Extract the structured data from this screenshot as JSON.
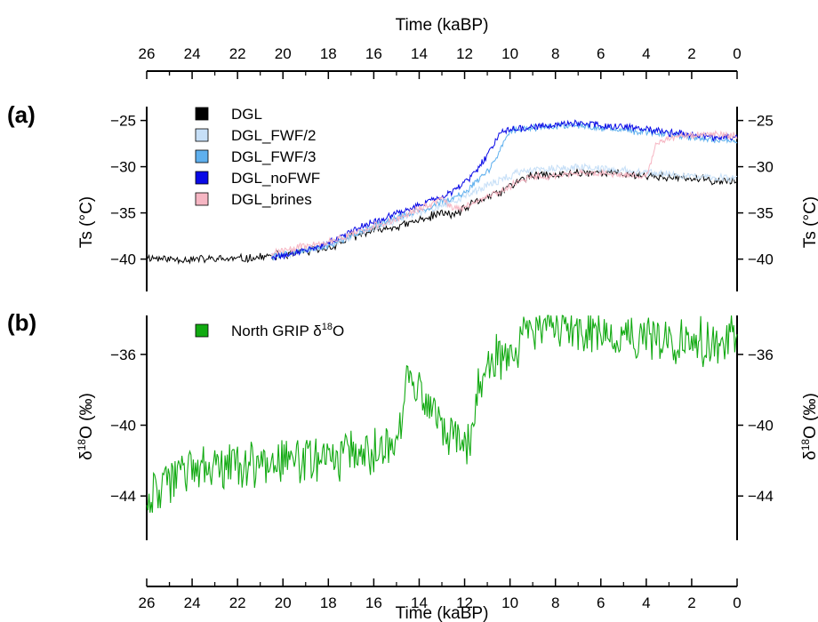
{
  "figure": {
    "top_axis_title": "Time (kaBP)",
    "bottom_axis_title": "Time (kaBP)",
    "x_ticks": [
      "26",
      "24",
      "22",
      "20",
      "18",
      "16",
      "14",
      "12",
      "10",
      "8",
      "6",
      "4",
      "2",
      "0"
    ]
  },
  "chart_data": [
    {
      "panel": "(a)",
      "type": "line",
      "xlabel": "Time (kaBP)",
      "ylabel": "Ts (°C)",
      "ylabel_right": "Ts (°C)",
      "xlim": [
        26,
        0
      ],
      "ylim": [
        -43.5,
        -23.5
      ],
      "y_ticks": [
        -25,
        -30,
        -35,
        -40
      ],
      "y_tick_labels": [
        "−25",
        "−30",
        "−35",
        "−40"
      ],
      "legend_position": "top-left",
      "x": [
        26,
        25,
        24,
        23,
        22,
        21,
        20,
        19,
        18,
        17,
        16,
        15,
        14.5,
        14,
        13.5,
        13,
        12.5,
        12,
        11.5,
        11,
        10.8,
        10.5,
        10.2,
        10,
        9.5,
        9,
        8.5,
        8,
        7,
        6,
        5,
        4,
        3.8,
        3.6,
        3,
        2,
        1,
        0
      ],
      "series": [
        {
          "name": "DGL",
          "color": "#000000",
          "start": 26,
          "end": 0,
          "noise": 0.55,
          "values": [
            -39.8,
            -40.0,
            -40.0,
            -40.0,
            -40.0,
            -39.8,
            -39.6,
            -39.2,
            -38.8,
            -37.7,
            -36.9,
            -36.5,
            -36.2,
            -35.8,
            -35.4,
            -35.0,
            -35.2,
            -34.6,
            -33.8,
            -33.3,
            -33.1,
            -32.9,
            -32.4,
            -32.1,
            -31.4,
            -31.0,
            -30.9,
            -31.0,
            -30.6,
            -30.6,
            -30.8,
            -31.0,
            -31.0,
            -31.0,
            -31.2,
            -31.3,
            -31.5,
            -31.6
          ]
        },
        {
          "name": "DGL_FWF/2",
          "color": "#c6dff7",
          "start": 20.5,
          "end": 0,
          "noise": 0.5,
          "values": [
            null,
            null,
            null,
            null,
            null,
            -39.8,
            -39.5,
            -39.0,
            -38.6,
            -37.5,
            -36.6,
            -35.8,
            -35.4,
            -35.0,
            -34.6,
            -34.2,
            -33.8,
            -33.3,
            -32.7,
            -32.0,
            -31.8,
            -31.5,
            -31.2,
            -31.0,
            -30.5,
            -30.3,
            -30.2,
            -30.2,
            -30.0,
            -30.2,
            -30.4,
            -30.6,
            -30.6,
            -30.7,
            -30.8,
            -31.0,
            -31.2,
            -31.3
          ]
        },
        {
          "name": "DGL_FWF/3",
          "color": "#5fb0ee",
          "start": 20.5,
          "end": 0,
          "noise": 0.45,
          "values": [
            null,
            null,
            null,
            null,
            null,
            -39.8,
            -39.5,
            -39.0,
            -38.5,
            -37.4,
            -36.4,
            -35.5,
            -35.1,
            -34.7,
            -34.3,
            -33.8,
            -33.3,
            -32.7,
            -31.6,
            -30.6,
            -29.8,
            -28.4,
            -26.9,
            -26.2,
            -25.9,
            -25.8,
            -25.7,
            -25.6,
            -25.5,
            -25.8,
            -26.0,
            -26.3,
            -26.3,
            -26.4,
            -26.5,
            -26.8,
            -27.1,
            -27.3
          ]
        },
        {
          "name": "DGL_noFWF",
          "color": "#0a0ae6",
          "start": 20.5,
          "end": 0,
          "noise": 0.45,
          "values": [
            null,
            null,
            null,
            null,
            null,
            -40.0,
            -39.7,
            -39.0,
            -38.3,
            -37.0,
            -36.0,
            -35.0,
            -34.6,
            -34.1,
            -33.7,
            -33.2,
            -32.6,
            -31.8,
            -30.5,
            -28.8,
            -27.9,
            -26.6,
            -26.0,
            -25.9,
            -25.8,
            -25.7,
            -25.6,
            -25.5,
            -25.3,
            -25.5,
            -25.7,
            -25.9,
            -26.0,
            -26.1,
            -26.3,
            -26.5,
            -26.8,
            -26.9
          ]
        },
        {
          "name": "DGL_brines",
          "color": "#f6b6c3",
          "start": 20.5,
          "end": 0,
          "noise": 0.45,
          "values": [
            null,
            null,
            null,
            null,
            null,
            -39.5,
            -39.1,
            -38.6,
            -38.2,
            -37.3,
            -36.5,
            -35.7,
            -35.0,
            -34.5,
            -34.2,
            -33.5,
            -34.6,
            -34.4,
            -33.8,
            -33.2,
            -33.0,
            -32.8,
            -32.4,
            -32.1,
            -31.5,
            -31.1,
            -31.0,
            -31.0,
            -30.7,
            -30.7,
            -30.9,
            -31.0,
            -29.8,
            -27.6,
            -26.9,
            -26.6,
            -26.5,
            -26.7
          ]
        }
      ]
    },
    {
      "panel": "(b)",
      "type": "line",
      "xlabel": "Time (kaBP)",
      "ylabel": "δ18O (‰)",
      "ylabel_right": "δ18O (‰)",
      "xlim": [
        26,
        0
      ],
      "ylim": [
        -46.5,
        -33.8
      ],
      "y_ticks": [
        -36,
        -40,
        -44
      ],
      "y_tick_labels": [
        "−36",
        "−40",
        "−44"
      ],
      "legend_position": "top-left",
      "x": [
        26,
        25,
        24,
        23,
        22,
        21,
        20,
        19,
        18,
        17,
        16,
        15.5,
        15,
        14.8,
        14.6,
        14.4,
        14.2,
        14,
        13.6,
        13.3,
        13,
        12.8,
        12.5,
        12.2,
        12,
        11.8,
        11.6,
        11.4,
        11.2,
        11,
        10.5,
        10,
        9.5,
        9,
        8.5,
        8,
        7,
        6,
        5,
        4,
        3,
        2,
        1,
        0.5,
        0
      ],
      "series": [
        {
          "name": "North GRIP",
          "label_sup": "18",
          "label_suffix": "O",
          "label_prefix": "δ",
          "color": "#12aa12",
          "start": 26,
          "end": 0,
          "noise": 1.6,
          "values": [
            -44.3,
            -43.2,
            -42.5,
            -42.5,
            -42.3,
            -42.3,
            -42.0,
            -42.0,
            -41.9,
            -41.5,
            -41.5,
            -41.4,
            -40.8,
            -39.8,
            -36.6,
            -37.1,
            -38.2,
            -38.3,
            -38.8,
            -39.0,
            -40.0,
            -40.3,
            -40.2,
            -41.0,
            -41.3,
            -40.7,
            -40.3,
            -38.2,
            -37.4,
            -37.0,
            -36.2,
            -35.8,
            -35.3,
            -34.8,
            -34.6,
            -34.5,
            -34.7,
            -34.8,
            -35.0,
            -35.1,
            -35.2,
            -35.4,
            -35.4,
            -35.6,
            -34.8
          ]
        }
      ]
    }
  ],
  "panels": {
    "a": {
      "label": "(a)",
      "ylabel": "Ts (°C)",
      "legend": [
        "DGL",
        "DGL_FWF/2",
        "DGL_FWF/3",
        "DGL_noFWF",
        "DGL_brines"
      ]
    },
    "b": {
      "label": "(b)",
      "ylabel_prefix": "δ",
      "ylabel_sup": "18",
      "ylabel_suffix": "O (‰)",
      "legend_prefix": "North GRIP δ",
      "legend_sup": "18",
      "legend_suffix": "O"
    }
  }
}
